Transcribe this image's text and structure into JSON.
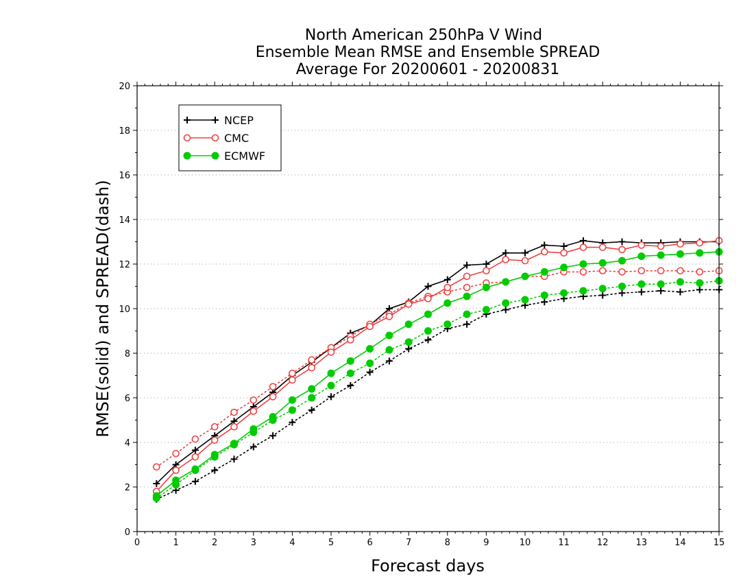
{
  "chart_data": {
    "type": "line",
    "title_lines": [
      "North American 250hPa V Wind",
      "Ensemble Mean RMSE and Ensemble SPREAD",
      "Average For 20200601 - 20200831"
    ],
    "xlabel": "Forecast days",
    "ylabel": "RMSE(solid) and SPREAD(dash)",
    "xlim": [
      0,
      15
    ],
    "ylim": [
      0,
      20
    ],
    "xticks": [
      "0",
      "1",
      "2",
      "3",
      "4",
      "5",
      "6",
      "7",
      "8",
      "9",
      "10",
      "11",
      "12",
      "13",
      "14",
      "15"
    ],
    "yticks": [
      "0",
      "2",
      "4",
      "6",
      "8",
      "10",
      "12",
      "14",
      "16",
      "18",
      "20"
    ],
    "grid": "horizontal dotted",
    "legend_position": "top-left",
    "x": [
      0.5,
      1,
      1.5,
      2,
      2.5,
      3,
      3.5,
      4,
      4.5,
      5,
      5.5,
      6,
      6.5,
      7,
      7.5,
      8,
      8.5,
      9,
      9.5,
      10,
      10.5,
      11,
      11.5,
      12,
      12.5,
      13,
      13.5,
      14,
      14.5,
      15
    ],
    "series": [
      {
        "name": "NCEP",
        "color": "#000000",
        "marker": "plus",
        "rmse": [
          2.15,
          3.0,
          3.65,
          4.3,
          4.95,
          5.6,
          6.25,
          7.0,
          7.6,
          8.25,
          8.9,
          9.25,
          10.0,
          10.3,
          11.0,
          11.3,
          11.95,
          12.0,
          12.5,
          12.5,
          12.85,
          12.8,
          13.05,
          12.95,
          13.0,
          12.95,
          12.95,
          13.0,
          13.0,
          13.0
        ],
        "spread": [
          1.45,
          1.85,
          2.25,
          2.75,
          3.25,
          3.8,
          4.3,
          4.9,
          5.45,
          6.05,
          6.55,
          7.15,
          7.65,
          8.2,
          8.6,
          9.1,
          9.3,
          9.75,
          9.95,
          10.15,
          10.3,
          10.45,
          10.55,
          10.6,
          10.7,
          10.75,
          10.8,
          10.75,
          10.85,
          10.85
        ]
      },
      {
        "name": "CMC",
        "color": "#f04040",
        "marker": "open-circle",
        "rmse": [
          1.8,
          2.75,
          3.35,
          4.1,
          4.7,
          5.4,
          6.05,
          6.8,
          7.35,
          8.05,
          8.6,
          9.2,
          9.65,
          10.2,
          10.45,
          10.95,
          11.45,
          11.7,
          12.2,
          12.15,
          12.55,
          12.5,
          12.75,
          12.75,
          12.65,
          12.85,
          12.8,
          12.9,
          12.95,
          13.05
        ],
        "spread": [
          2.9,
          3.5,
          4.15,
          4.7,
          5.35,
          5.9,
          6.5,
          7.1,
          7.7,
          8.25,
          8.75,
          9.3,
          9.75,
          10.25,
          10.55,
          10.75,
          10.95,
          11.15,
          11.2,
          11.45,
          11.45,
          11.65,
          11.65,
          11.7,
          11.65,
          11.7,
          11.7,
          11.7,
          11.65,
          11.7
        ]
      },
      {
        "name": "ECMWF",
        "color": "#00cc00",
        "marker": "filled-circle",
        "rmse": [
          1.6,
          2.3,
          2.8,
          3.45,
          3.95,
          4.6,
          5.15,
          5.9,
          6.4,
          7.1,
          7.65,
          8.2,
          8.8,
          9.3,
          9.75,
          10.25,
          10.55,
          10.95,
          11.2,
          11.45,
          11.65,
          11.85,
          12.0,
          12.05,
          12.15,
          12.35,
          12.4,
          12.45,
          12.5,
          12.55
        ],
        "spread": [
          1.5,
          2.1,
          2.75,
          3.35,
          3.9,
          4.45,
          5.0,
          5.45,
          6.0,
          6.55,
          7.1,
          7.55,
          8.15,
          8.5,
          9.0,
          9.3,
          9.75,
          9.95,
          10.25,
          10.4,
          10.6,
          10.7,
          10.8,
          10.9,
          11.0,
          11.1,
          11.1,
          11.2,
          11.15,
          11.25
        ]
      }
    ]
  }
}
